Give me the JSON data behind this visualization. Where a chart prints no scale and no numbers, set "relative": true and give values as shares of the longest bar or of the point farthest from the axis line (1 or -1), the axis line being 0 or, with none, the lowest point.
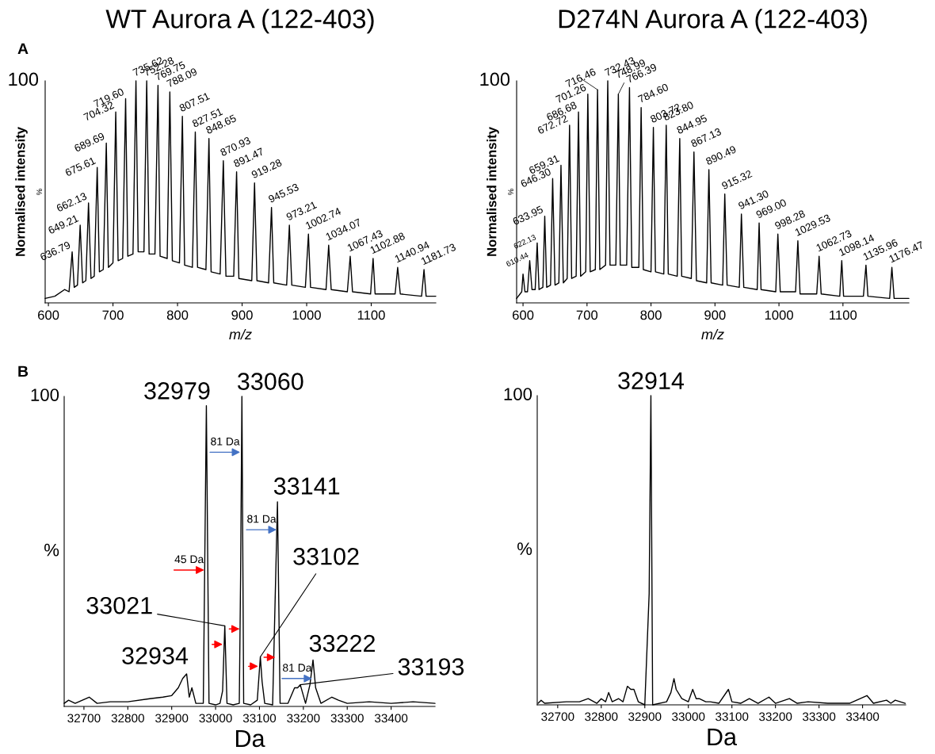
{
  "chart_data": [
    {
      "type": "line",
      "relative": true,
      "title": "WT Aurora A (122-403)",
      "xlabel": "m/z",
      "ylabel": "Normalised intensity",
      "xlim": [
        595,
        1200
      ],
      "xticks": [
        600,
        700,
        800,
        900,
        1000,
        1100
      ],
      "series": [
        {
          "color": "#000000",
          "x": [
            595,
            610,
            625,
            632,
            636.79,
            640,
            645,
            649.21,
            653,
            658,
            662.13,
            666,
            671,
            675.61,
            679,
            685,
            689.69,
            693,
            700,
            704.32,
            708,
            715,
            719.6,
            723,
            731,
            735.62,
            739,
            748,
            752.28,
            756,
            765,
            769.75,
            773,
            784,
            788.09,
            792,
            803,
            807.51,
            811,
            823,
            827.51,
            831,
            844,
            848.65,
            852,
            866,
            870.93,
            875,
            887,
            891.47,
            895,
            915,
            919.28,
            923,
            941,
            945.53,
            949,
            969,
            973.21,
            977,
            998,
            1002.74,
            1006,
            1030,
            1034.07,
            1038,
            1063,
            1067.43,
            1071,
            1099,
            1102.88,
            1106,
            1137,
            1140.94,
            1145,
            1178,
            1181.73,
            1185,
            1200
          ],
          "values": [
            0.02,
            0.03,
            0.06,
            0.05,
            0.23,
            0.07,
            0.08,
            0.35,
            0.09,
            0.1,
            0.45,
            0.11,
            0.12,
            0.61,
            0.14,
            0.15,
            0.72,
            0.16,
            0.18,
            0.86,
            0.19,
            0.2,
            0.92,
            0.21,
            0.22,
            1,
            0.23,
            0.23,
            1,
            0.22,
            0.22,
            0.98,
            0.21,
            0.2,
            0.95,
            0.19,
            0.18,
            0.84,
            0.17,
            0.16,
            0.77,
            0.16,
            0.15,
            0.74,
            0.14,
            0.13,
            0.64,
            0.12,
            0.12,
            0.59,
            0.11,
            0.1,
            0.54,
            0.1,
            0.09,
            0.43,
            0.09,
            0.08,
            0.35,
            0.08,
            0.07,
            0.31,
            0.07,
            0.06,
            0.26,
            0.06,
            0.05,
            0.21,
            0.05,
            0.04,
            0.2,
            0.04,
            0.04,
            0.16,
            0.04,
            0.03,
            0.15,
            0.03,
            0.03
          ]
        }
      ],
      "annotations": [
        "A",
        "100",
        "%",
        {
          "text": "636.79",
          "x": 636.79,
          "y": 0.23
        },
        {
          "text": "649.21",
          "x": 649.21,
          "y": 0.35
        },
        {
          "text": "662.13",
          "x": 662.13,
          "y": 0.45
        },
        {
          "text": "675.61",
          "x": 675.61,
          "y": 0.61
        },
        {
          "text": "689.69",
          "x": 689.69,
          "y": 0.72
        },
        {
          "text": "704.32",
          "x": 704.32,
          "y": 0.86
        },
        {
          "text": "719.60",
          "x": 719.6,
          "y": 0.92
        },
        {
          "text": "735.62",
          "x": 735.62,
          "y": 1
        },
        {
          "text": "752.28",
          "x": 752.28,
          "y": 1
        },
        {
          "text": "769.75",
          "x": 769.75,
          "y": 0.98
        },
        {
          "text": "788.09",
          "x": 788.09,
          "y": 0.95
        },
        {
          "text": "807.51",
          "x": 807.51,
          "y": 0.84
        },
        {
          "text": "827.51",
          "x": 827.51,
          "y": 0.77
        },
        {
          "text": "848.65",
          "x": 848.65,
          "y": 0.74
        },
        {
          "text": "870.93",
          "x": 870.93,
          "y": 0.64
        },
        {
          "text": "891.47",
          "x": 891.47,
          "y": 0.59
        },
        {
          "text": "919.28",
          "x": 919.28,
          "y": 0.54
        },
        {
          "text": "945.53",
          "x": 945.53,
          "y": 0.43
        },
        {
          "text": "973.21",
          "x": 973.21,
          "y": 0.35
        },
        {
          "text": "1002.74",
          "x": 1002.74,
          "y": 0.31
        },
        {
          "text": "1034.07",
          "x": 1034.07,
          "y": 0.26
        },
        {
          "text": "1067.43",
          "x": 1067.43,
          "y": 0.21
        },
        {
          "text": "1102.88",
          "x": 1102.88,
          "y": 0.2
        },
        {
          "text": "1140.94",
          "x": 1140.94,
          "y": 0.16
        },
        {
          "text": "1181.73",
          "x": 1181.73,
          "y": 0.15
        }
      ]
    },
    {
      "type": "line",
      "relative": true,
      "title": "D274N Aurora A (122-403)",
      "xlabel": "m/z",
      "ylabel": "Normalised intensity",
      "xlim": [
        590,
        1203
      ],
      "xticks": [
        600,
        700,
        800,
        900,
        1000,
        1100
      ],
      "series": [
        {
          "color": "#000000",
          "x": [
            590,
            598,
            600,
            603,
            607,
            610.44,
            614,
            619,
            622.13,
            625,
            631,
            633.95,
            637,
            643,
            646.3,
            650,
            656,
            659.31,
            663,
            669,
            672.72,
            676,
            683,
            686.68,
            690,
            698,
            701.26,
            705,
            713,
            716.46,
            720,
            729,
            732.43,
            736,
            745,
            748.99,
            752,
            762,
            766.39,
            770,
            781,
            784.6,
            788,
            800,
            803.72,
            807,
            820,
            823.8,
            827,
            841,
            844.95,
            848,
            863,
            867.13,
            871,
            887,
            890.49,
            894,
            912,
            915.32,
            919,
            938,
            941.3,
            945,
            966,
            969.0,
            972,
            995,
            998.28,
            1002,
            1026,
            1029.53,
            1033,
            1059,
            1062.73,
            1066,
            1095,
            1098.14,
            1101,
            1132,
            1135.96,
            1139,
            1173,
            1176.47,
            1180,
            1203
          ],
          "values": [
            0.02,
            0.05,
            0.13,
            0.05,
            0.05,
            0.19,
            0.06,
            0.06,
            0.27,
            0.06,
            0.07,
            0.39,
            0.07,
            0.08,
            0.56,
            0.08,
            0.09,
            0.62,
            0.09,
            0.11,
            0.8,
            0.11,
            0.12,
            0.86,
            0.12,
            0.14,
            0.94,
            0.14,
            0.15,
            0.96,
            0.15,
            0.17,
            1,
            0.17,
            0.17,
            0.94,
            0.17,
            0.17,
            0.97,
            0.16,
            0.16,
            0.88,
            0.15,
            0.14,
            0.79,
            0.14,
            0.13,
            0.8,
            0.13,
            0.12,
            0.74,
            0.12,
            0.11,
            0.68,
            0.1,
            0.09,
            0.6,
            0.09,
            0.08,
            0.49,
            0.08,
            0.07,
            0.4,
            0.07,
            0.06,
            0.36,
            0.06,
            0.05,
            0.31,
            0.05,
            0.05,
            0.28,
            0.04,
            0.04,
            0.21,
            0.04,
            0.03,
            0.19,
            0.03,
            0.03,
            0.17,
            0.03,
            0.02,
            0.16,
            0.02,
            0.02
          ]
        }
      ],
      "annotations": [
        "100",
        "%",
        {
          "text": "610.44",
          "x": 610.44,
          "y": 0.19
        },
        {
          "text": "622.13",
          "x": 622.13,
          "y": 0.27
        },
        {
          "text": "633.95",
          "x": 633.95,
          "y": 0.39
        },
        {
          "text": "646.30",
          "x": 646.3,
          "y": 0.56
        },
        {
          "text": "659.31",
          "x": 659.31,
          "y": 0.62
        },
        {
          "text": "672.72",
          "x": 672.72,
          "y": 0.8
        },
        {
          "text": "686.68",
          "x": 686.68,
          "y": 0.86
        },
        {
          "text": "701.26",
          "x": 701.26,
          "y": 0.94
        },
        {
          "text": "716.46",
          "x": 716.46,
          "y": 0.96
        },
        {
          "text": "732.43",
          "x": 732.43,
          "y": 1
        },
        {
          "text": "748.99",
          "x": 748.99,
          "y": 0.94
        },
        {
          "text": "766.39",
          "x": 766.39,
          "y": 0.97
        },
        {
          "text": "784.60",
          "x": 784.6,
          "y": 0.88
        },
        {
          "text": "803.72",
          "x": 803.72,
          "y": 0.79
        },
        {
          "text": "823.80",
          "x": 823.8,
          "y": 0.8
        },
        {
          "text": "844.95",
          "x": 844.95,
          "y": 0.74
        },
        {
          "text": "867.13",
          "x": 867.13,
          "y": 0.68
        },
        {
          "text": "890.49",
          "x": 890.49,
          "y": 0.6
        },
        {
          "text": "915.32",
          "x": 915.32,
          "y": 0.49
        },
        {
          "text": "941.30",
          "x": 941.3,
          "y": 0.4
        },
        {
          "text": "969.00",
          "x": 969.0,
          "y": 0.36
        },
        {
          "text": "998.28",
          "x": 998.28,
          "y": 0.31
        },
        {
          "text": "1029.53",
          "x": 1029.53,
          "y": 0.28
        },
        {
          "text": "1062.73",
          "x": 1062.73,
          "y": 0.21
        },
        {
          "text": "1098.14",
          "x": 1098.14,
          "y": 0.19
        },
        {
          "text": "1135.96",
          "x": 1135.96,
          "y": 0.17
        },
        {
          "text": "1176.47",
          "x": 1176.47,
          "y": 0.16
        }
      ]
    },
    {
      "type": "line",
      "relative": true,
      "xlabel": "Da",
      "xlim": [
        32655,
        33500
      ],
      "xticks": [
        32700,
        32800,
        32900,
        33000,
        33100,
        33200,
        33300,
        33400
      ],
      "series": [
        {
          "color": "#000000",
          "x": [
            32655,
            32665,
            32680,
            32712,
            32730,
            32760,
            32800,
            32850,
            32880,
            32900,
            32915,
            32925,
            32934,
            32940,
            32946,
            32955,
            32972,
            32979,
            32985,
            33000,
            33010,
            33016,
            33021,
            33026,
            33040,
            33054,
            33057,
            33060,
            33064,
            33080,
            33095,
            33102,
            33106,
            33112,
            33130,
            33141,
            33147,
            33165,
            33180,
            33187,
            33193,
            33205,
            33215,
            33222,
            33228,
            33240,
            33265,
            33280,
            33300,
            33350,
            33400,
            33450,
            33500
          ],
          "values": [
            0.01,
            0.02,
            0.01,
            0.03,
            0.01,
            0.015,
            0.015,
            0.025,
            0.03,
            0.035,
            0.06,
            0.09,
            0.105,
            0.03,
            0.06,
            0.01,
            0.01,
            0.97,
            0.01,
            0.005,
            0.01,
            0.05,
            0.26,
            0.01,
            0.005,
            0.01,
            0.42,
            1,
            0.01,
            0.005,
            0.02,
            0.16,
            0.08,
            0.01,
            0.005,
            0.66,
            0.01,
            0.01,
            0.06,
            0.06,
            0.07,
            0.01,
            0.07,
            0.15,
            0.06,
            0.01,
            0.03,
            0.02,
            0.01,
            0.015,
            0.01,
            0.015,
            0.01
          ]
        }
      ],
      "annotations": [
        "B",
        "100",
        "%",
        {
          "text": "32979",
          "x": 32979,
          "y": 0.97
        },
        {
          "text": "33060",
          "x": 33060,
          "y": 1
        },
        {
          "text": "33141",
          "x": 33141,
          "y": 0.66
        },
        {
          "text": "33102",
          "x": 33102,
          "y": 0.16
        },
        {
          "text": "33021",
          "x": 33021,
          "y": 0.26
        },
        {
          "text": "32934",
          "x": 32934,
          "y": 0.105
        },
        {
          "text": "33222",
          "x": 33222,
          "y": 0.15
        },
        {
          "text": "33193",
          "x": 33193,
          "y": 0.07
        },
        {
          "text": "81 Da",
          "x": 33056,
          "y": 0.82
        },
        {
          "text": "81 Da",
          "x": 33139,
          "y": 0.57
        },
        {
          "text": "81 Da",
          "x": 33220,
          "y": 0.09
        },
        {
          "text": "45 Da",
          "x": 32974,
          "y": 0.44
        }
      ]
    },
    {
      "type": "line",
      "relative": true,
      "xlabel": "Da",
      "xlim": [
        32653,
        33499
      ],
      "xticks": [
        32700,
        32800,
        32900,
        33000,
        33100,
        33200,
        33300,
        33400
      ],
      "series": [
        {
          "color": "#000000",
          "x": [
            32655,
            32662,
            32670,
            32720,
            32750,
            32770,
            32790,
            32800,
            32810,
            32817,
            32825,
            32840,
            32850,
            32860,
            32868,
            32875,
            32885,
            32900,
            32910,
            32914,
            32918,
            32950,
            32960,
            32967,
            32972,
            32985,
            33000,
            33010,
            33018,
            33025,
            33040,
            33050,
            33070,
            33092,
            33100,
            33120,
            33140,
            33160,
            33185,
            33200,
            33232,
            33250,
            33275,
            33320,
            33370,
            33410,
            33425,
            33455,
            33465,
            33475,
            33498
          ],
          "values": [
            0.005,
            0.015,
            0.005,
            0.01,
            0.01,
            0.02,
            0.005,
            0.02,
            0.01,
            0.04,
            0.01,
            0.02,
            0.01,
            0.06,
            0.05,
            0.05,
            0.01,
            0,
            0.36,
            1,
            0,
            0.01,
            0.04,
            0.085,
            0.05,
            0.02,
            0.01,
            0.05,
            0.02,
            0.02,
            0.01,
            0.01,
            0.005,
            0.05,
            0.01,
            0.005,
            0.02,
            0.005,
            0.025,
            0.005,
            0.02,
            0.005,
            0.01,
            0.005,
            0.005,
            0.03,
            0.005,
            0.015,
            0.005,
            0.015,
            0.005
          ]
        }
      ],
      "annotations": [
        "100",
        "%",
        {
          "text": "32914",
          "x": 32914,
          "y": 1
        }
      ]
    }
  ]
}
